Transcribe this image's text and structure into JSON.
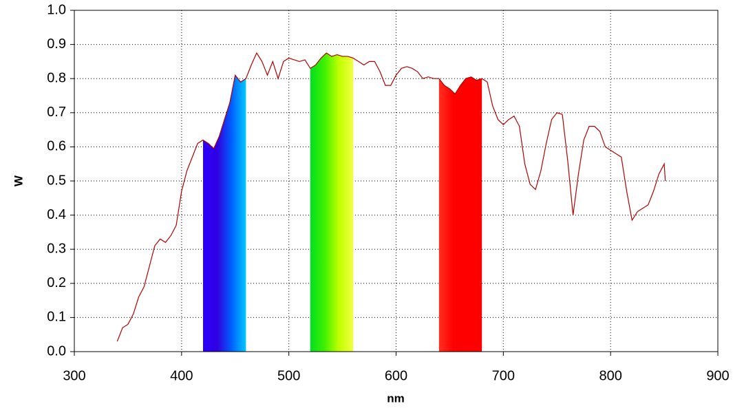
{
  "chart_data": {
    "type": "line",
    "xlabel": "nm",
    "ylabel": "W",
    "xlim": [
      300,
      900
    ],
    "ylim": [
      0,
      1
    ],
    "xticks": [
      300,
      400,
      500,
      600,
      700,
      800,
      900
    ],
    "yticks": [
      {
        "value": 0,
        "label": "0.0"
      },
      0.1,
      0.2,
      0.3,
      0.4,
      0.5,
      0.6,
      0.7,
      0.8,
      0.9,
      {
        "value": 1,
        "label": "1.0"
      }
    ],
    "grid": true,
    "bands": [
      {
        "range": [
          420,
          460
        ],
        "colors": [
          "#2a00ff",
          "#3000e0",
          "#0060ff",
          "#00c8ff"
        ]
      },
      {
        "range": [
          520,
          560
        ],
        "colors": [
          "#00e020",
          "#40f000",
          "#c0ff00",
          "#f0ff40"
        ]
      },
      {
        "range": [
          640,
          680
        ],
        "colors": [
          "#ff3020",
          "#ff0000",
          "#ff0000",
          "#ff0000"
        ]
      }
    ],
    "series": [
      {
        "color": "#b00000",
        "x": [
          340,
          345,
          350,
          355,
          360,
          365,
          370,
          375,
          380,
          385,
          390,
          395,
          400,
          405,
          410,
          415,
          420,
          425,
          430,
          435,
          440,
          445,
          450,
          455,
          460,
          465,
          470,
          475,
          480,
          485,
          490,
          495,
          500,
          505,
          510,
          515,
          520,
          525,
          530,
          535,
          540,
          545,
          550,
          555,
          560,
          565,
          570,
          575,
          580,
          585,
          590,
          595,
          600,
          605,
          610,
          615,
          620,
          625,
          630,
          635,
          640,
          645,
          650,
          655,
          660,
          665,
          670,
          675,
          680,
          685,
          690,
          695,
          700,
          705,
          710,
          715,
          720,
          725,
          730,
          735,
          740,
          745,
          750,
          755,
          760,
          765,
          770,
          775,
          780,
          785,
          790,
          795,
          800,
          805,
          810,
          815,
          820,
          825,
          830,
          835,
          840,
          845,
          850,
          851
        ],
        "values": [
          0.03,
          0.07,
          0.08,
          0.11,
          0.16,
          0.19,
          0.25,
          0.31,
          0.33,
          0.32,
          0.34,
          0.37,
          0.47,
          0.53,
          0.57,
          0.61,
          0.62,
          0.61,
          0.595,
          0.63,
          0.68,
          0.73,
          0.81,
          0.79,
          0.8,
          0.84,
          0.875,
          0.85,
          0.81,
          0.85,
          0.8,
          0.85,
          0.86,
          0.855,
          0.85,
          0.855,
          0.83,
          0.84,
          0.86,
          0.875,
          0.865,
          0.87,
          0.865,
          0.865,
          0.86,
          0.85,
          0.84,
          0.85,
          0.85,
          0.82,
          0.78,
          0.78,
          0.81,
          0.83,
          0.835,
          0.83,
          0.82,
          0.8,
          0.805,
          0.8,
          0.8,
          0.78,
          0.77,
          0.755,
          0.78,
          0.8,
          0.805,
          0.795,
          0.8,
          0.79,
          0.72,
          0.68,
          0.665,
          0.68,
          0.69,
          0.66,
          0.55,
          0.49,
          0.475,
          0.53,
          0.61,
          0.68,
          0.7,
          0.695,
          0.56,
          0.4,
          0.52,
          0.62,
          0.66,
          0.66,
          0.645,
          0.6,
          0.59,
          0.58,
          0.57,
          0.47,
          0.385,
          0.41,
          0.42,
          0.43,
          0.47,
          0.52,
          0.55,
          0.5
        ]
      }
    ]
  }
}
